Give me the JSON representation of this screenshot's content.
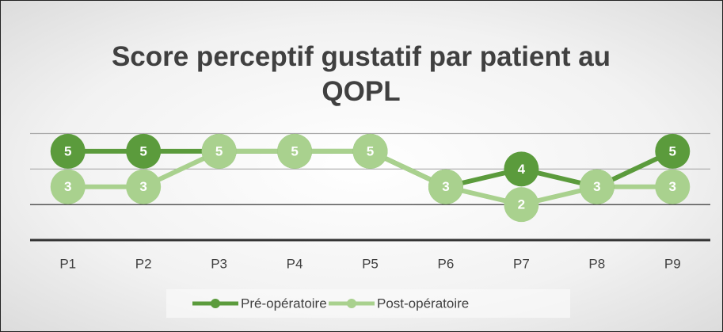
{
  "chart_data": {
    "type": "line",
    "title": "Score perceptif gustatif par patient au QOPL",
    "categories": [
      "P1",
      "P2",
      "P3",
      "P4",
      "P5",
      "P6",
      "P7",
      "P8",
      "P9"
    ],
    "series": [
      {
        "name": "Pré-opératoire",
        "color": "#5b9b3c",
        "values": [
          5,
          5,
          5,
          5,
          5,
          3,
          4,
          3,
          5
        ]
      },
      {
        "name": "Post-opératoire",
        "color": "#a9d18e",
        "values": [
          3,
          3,
          5,
          5,
          5,
          3,
          2,
          3,
          3
        ]
      }
    ],
    "ylim": [
      0,
      6
    ],
    "yticks": [
      0,
      2,
      4,
      6
    ],
    "grid": true,
    "legend": "bottom"
  }
}
